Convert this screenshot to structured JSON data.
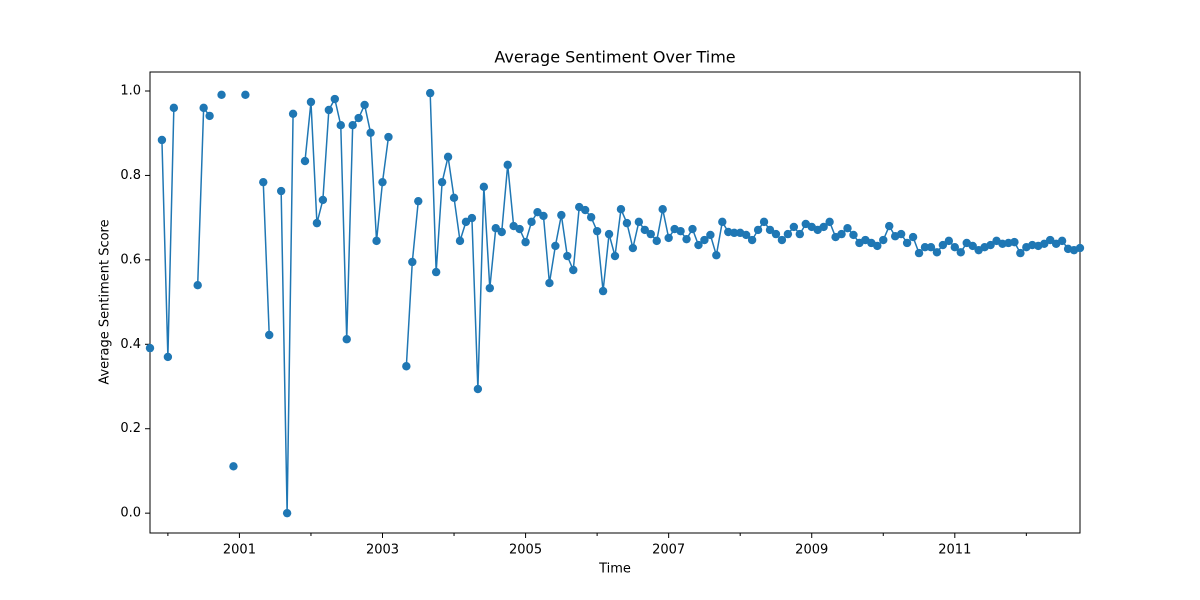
{
  "chart_data": {
    "type": "line",
    "title": "Average Sentiment Over Time",
    "x_label": "Time",
    "y_label": "Average Sentiment Score",
    "x": [
      "1999-10",
      "1999-11",
      "1999-12",
      "2000-01",
      "2000-02",
      "2000-03",
      "2000-04",
      "2000-05",
      "2000-06",
      "2000-07",
      "2000-08",
      "2000-09",
      "2000-10",
      "2000-11",
      "2000-12",
      "2001-01",
      "2001-02",
      "2001-03",
      "2001-04",
      "2001-05",
      "2001-06",
      "2001-07",
      "2001-08",
      "2001-09",
      "2001-10",
      "2001-11",
      "2001-12",
      "2002-01",
      "2002-02",
      "2002-03",
      "2002-04",
      "2002-05",
      "2002-06",
      "2002-07",
      "2002-08",
      "2002-09",
      "2002-10",
      "2002-11",
      "2002-12",
      "2003-01",
      "2003-02",
      "2003-03",
      "2003-04",
      "2003-05",
      "2003-06",
      "2003-07",
      "2003-08",
      "2003-09",
      "2003-10",
      "2003-11",
      "2003-12",
      "2004-01",
      "2004-02",
      "2004-03",
      "2004-04",
      "2004-05",
      "2004-06",
      "2004-07",
      "2004-08",
      "2004-09",
      "2004-10",
      "2004-11",
      "2004-12",
      "2005-01",
      "2005-02",
      "2005-03",
      "2005-04",
      "2005-05",
      "2005-06",
      "2005-07",
      "2005-08",
      "2005-09",
      "2005-10",
      "2005-11",
      "2005-12",
      "2006-01",
      "2006-02",
      "2006-03",
      "2006-04",
      "2006-05",
      "2006-06",
      "2006-07",
      "2006-08",
      "2006-09",
      "2006-10",
      "2006-11",
      "2006-12",
      "2007-01",
      "2007-02",
      "2007-03",
      "2007-04",
      "2007-05",
      "2007-06",
      "2007-07",
      "2007-08",
      "2007-09",
      "2007-10",
      "2007-11",
      "2007-12",
      "2008-01",
      "2008-02",
      "2008-03",
      "2008-04",
      "2008-05",
      "2008-06",
      "2008-07",
      "2008-08",
      "2008-09",
      "2008-10",
      "2008-11",
      "2008-12",
      "2009-01",
      "2009-02",
      "2009-03",
      "2009-04",
      "2009-05",
      "2009-06",
      "2009-07",
      "2009-08",
      "2009-09",
      "2009-10",
      "2009-11",
      "2009-12",
      "2010-01",
      "2010-02",
      "2010-03",
      "2010-04",
      "2010-05",
      "2010-06",
      "2010-07",
      "2010-08",
      "2010-09",
      "2010-10",
      "2010-11",
      "2010-12",
      "2011-01",
      "2011-02",
      "2011-03",
      "2011-04",
      "2011-05",
      "2011-06",
      "2011-07",
      "2011-08",
      "2011-09",
      "2011-10",
      "2011-11",
      "2011-12",
      "2012-01",
      "2012-02",
      "2012-03",
      "2012-04",
      "2012-05",
      "2012-06",
      "2012-07",
      "2012-08",
      "2012-09",
      "2012-10"
    ],
    "series": [
      {
        "color": "#1f77b4",
        "values": [
          0.391,
          null,
          0.884,
          0.37,
          0.96,
          null,
          null,
          null,
          0.54,
          0.96,
          0.941,
          null,
          0.991,
          null,
          0.111,
          null,
          0.991,
          null,
          null,
          0.784,
          0.422,
          null,
          0.763,
          0.0,
          0.946,
          null,
          0.834,
          0.974,
          0.687,
          0.742,
          0.955,
          0.981,
          0.919,
          0.412,
          0.919,
          0.936,
          0.967,
          0.901,
          0.645,
          0.784,
          0.891,
          null,
          null,
          0.348,
          0.595,
          0.739,
          null,
          0.995,
          0.571,
          0.784,
          0.844,
          0.747,
          0.645,
          0.69,
          0.699,
          0.294,
          0.773,
          0.533,
          0.675,
          0.666,
          0.825,
          0.68,
          0.673,
          0.642,
          0.69,
          0.713,
          0.704,
          0.545,
          0.633,
          0.706,
          0.609,
          0.576,
          0.725,
          0.718,
          0.701,
          0.668,
          0.526,
          0.661,
          0.609,
          0.72,
          0.687,
          0.628,
          0.69,
          0.671,
          0.661,
          0.645,
          0.72,
          0.652,
          0.673,
          0.668,
          0.649,
          0.673,
          0.635,
          0.647,
          0.659,
          0.611,
          0.69,
          0.666,
          0.664,
          0.664,
          0.659,
          0.647,
          0.671,
          0.69,
          0.671,
          0.661,
          0.647,
          0.661,
          0.678,
          0.661,
          0.685,
          0.678,
          0.671,
          0.678,
          0.69,
          0.654,
          0.661,
          0.675,
          0.659,
          0.64,
          0.647,
          0.64,
          0.633,
          0.647,
          0.68,
          0.656,
          0.661,
          0.64,
          0.654,
          0.616,
          0.63,
          0.63,
          0.618,
          0.635,
          0.645,
          0.63,
          0.618,
          0.64,
          0.633,
          0.623,
          0.63,
          0.635,
          0.645,
          0.638,
          0.64,
          0.642,
          0.616,
          0.63,
          0.635,
          0.633,
          0.638,
          0.647,
          0.638,
          0.645,
          0.626,
          0.623,
          0.628
        ]
      }
    ],
    "xlim": [
      "1999-10",
      "2012-10"
    ],
    "xticks": [
      {
        "value": "2001-01",
        "label": "2001"
      },
      {
        "value": "2003-01",
        "label": "2003"
      },
      {
        "value": "2005-01",
        "label": "2005"
      },
      {
        "value": "2007-01",
        "label": "2007"
      },
      {
        "value": "2009-01",
        "label": "2009"
      },
      {
        "value": "2011-01",
        "label": "2011"
      }
    ],
    "xminorticks": [
      "2000-01",
      "2002-01",
      "2004-01",
      "2006-01",
      "2008-01",
      "2010-01",
      "2012-01"
    ],
    "ylim": [
      -0.047,
      1.045
    ],
    "yticks": [
      {
        "value": 0,
        "label": "0.0"
      },
      {
        "value": 0.2,
        "label": "0.2"
      },
      {
        "value": 0.4,
        "label": "0.4"
      },
      {
        "value": 0.6,
        "label": "0.6"
      },
      {
        "value": 0.8,
        "label": "0.8"
      },
      {
        "value": 1,
        "label": "1.0"
      }
    ],
    "markers": true
  }
}
